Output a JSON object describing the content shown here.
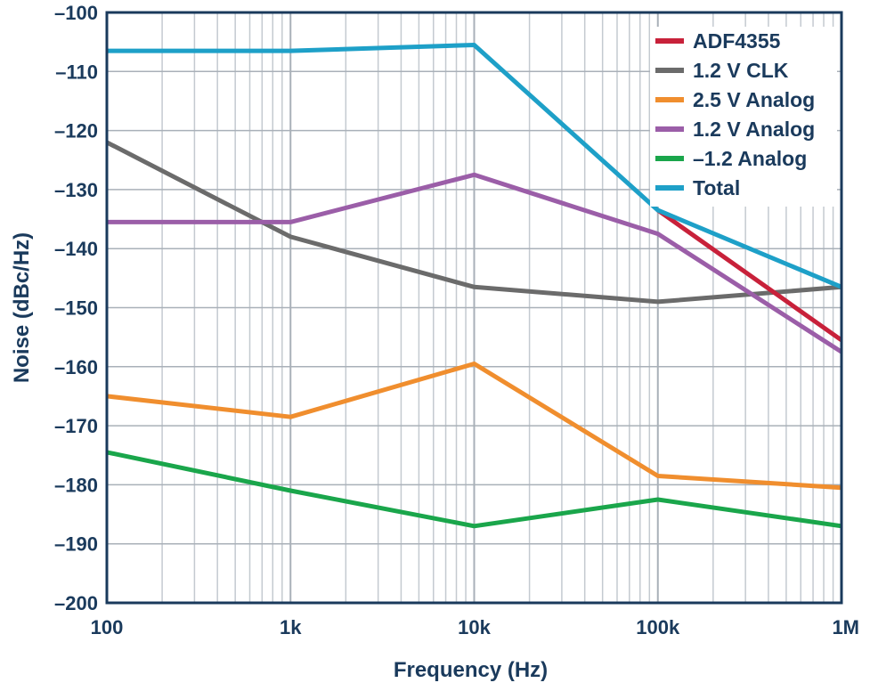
{
  "chart_data": {
    "type": "line",
    "title": "",
    "xlabel": "Frequency (Hz)",
    "ylabel": "Noise (dBc/Hz)",
    "x_scale": "log",
    "xlim": [
      100,
      1000000
    ],
    "ylim": [
      -200,
      -100
    ],
    "grid": true,
    "legend_position": "top-right",
    "x_ticks": [
      100,
      1000,
      10000,
      100000,
      1000000
    ],
    "x_tick_labels": [
      "100",
      "1k",
      "10k",
      "100k",
      "1M"
    ],
    "y_ticks": [
      -100,
      -110,
      -120,
      -130,
      -140,
      -150,
      -160,
      -170,
      -180,
      -190,
      -200
    ],
    "y_tick_labels": [
      "–100",
      "–110",
      "–120",
      "–130",
      "–140",
      "–150",
      "–160",
      "–170",
      "–180",
      "–190",
      "–200"
    ],
    "x": [
      100,
      1000,
      10000,
      100000,
      1000000
    ],
    "series": [
      {
        "name": "ADF4355",
        "color": "#c8213a",
        "values": [
          null,
          null,
          null,
          -133.5,
          -155.5
        ]
      },
      {
        "name": "1.2 V CLK",
        "color": "#6b6b6b",
        "values": [
          -122,
          -138,
          -146.5,
          -149,
          -146.5
        ]
      },
      {
        "name": "2.5 V Analog",
        "color": "#f08e2e",
        "values": [
          -165,
          -168.5,
          -159.5,
          -178.5,
          -180.5
        ]
      },
      {
        "name": "1.2 V Analog",
        "color": "#9b5ea8",
        "values": [
          -135.5,
          -135.5,
          -127.5,
          -137.5,
          -157.5
        ]
      },
      {
        "name": "–1.2 Analog",
        "color": "#1aa64b",
        "values": [
          -174.5,
          -181,
          -187,
          -182.5,
          -187
        ]
      },
      {
        "name": "Total",
        "color": "#1ea0c8",
        "values": [
          -106.5,
          -106.5,
          -105.5,
          -133.5,
          -146.5
        ]
      }
    ]
  }
}
